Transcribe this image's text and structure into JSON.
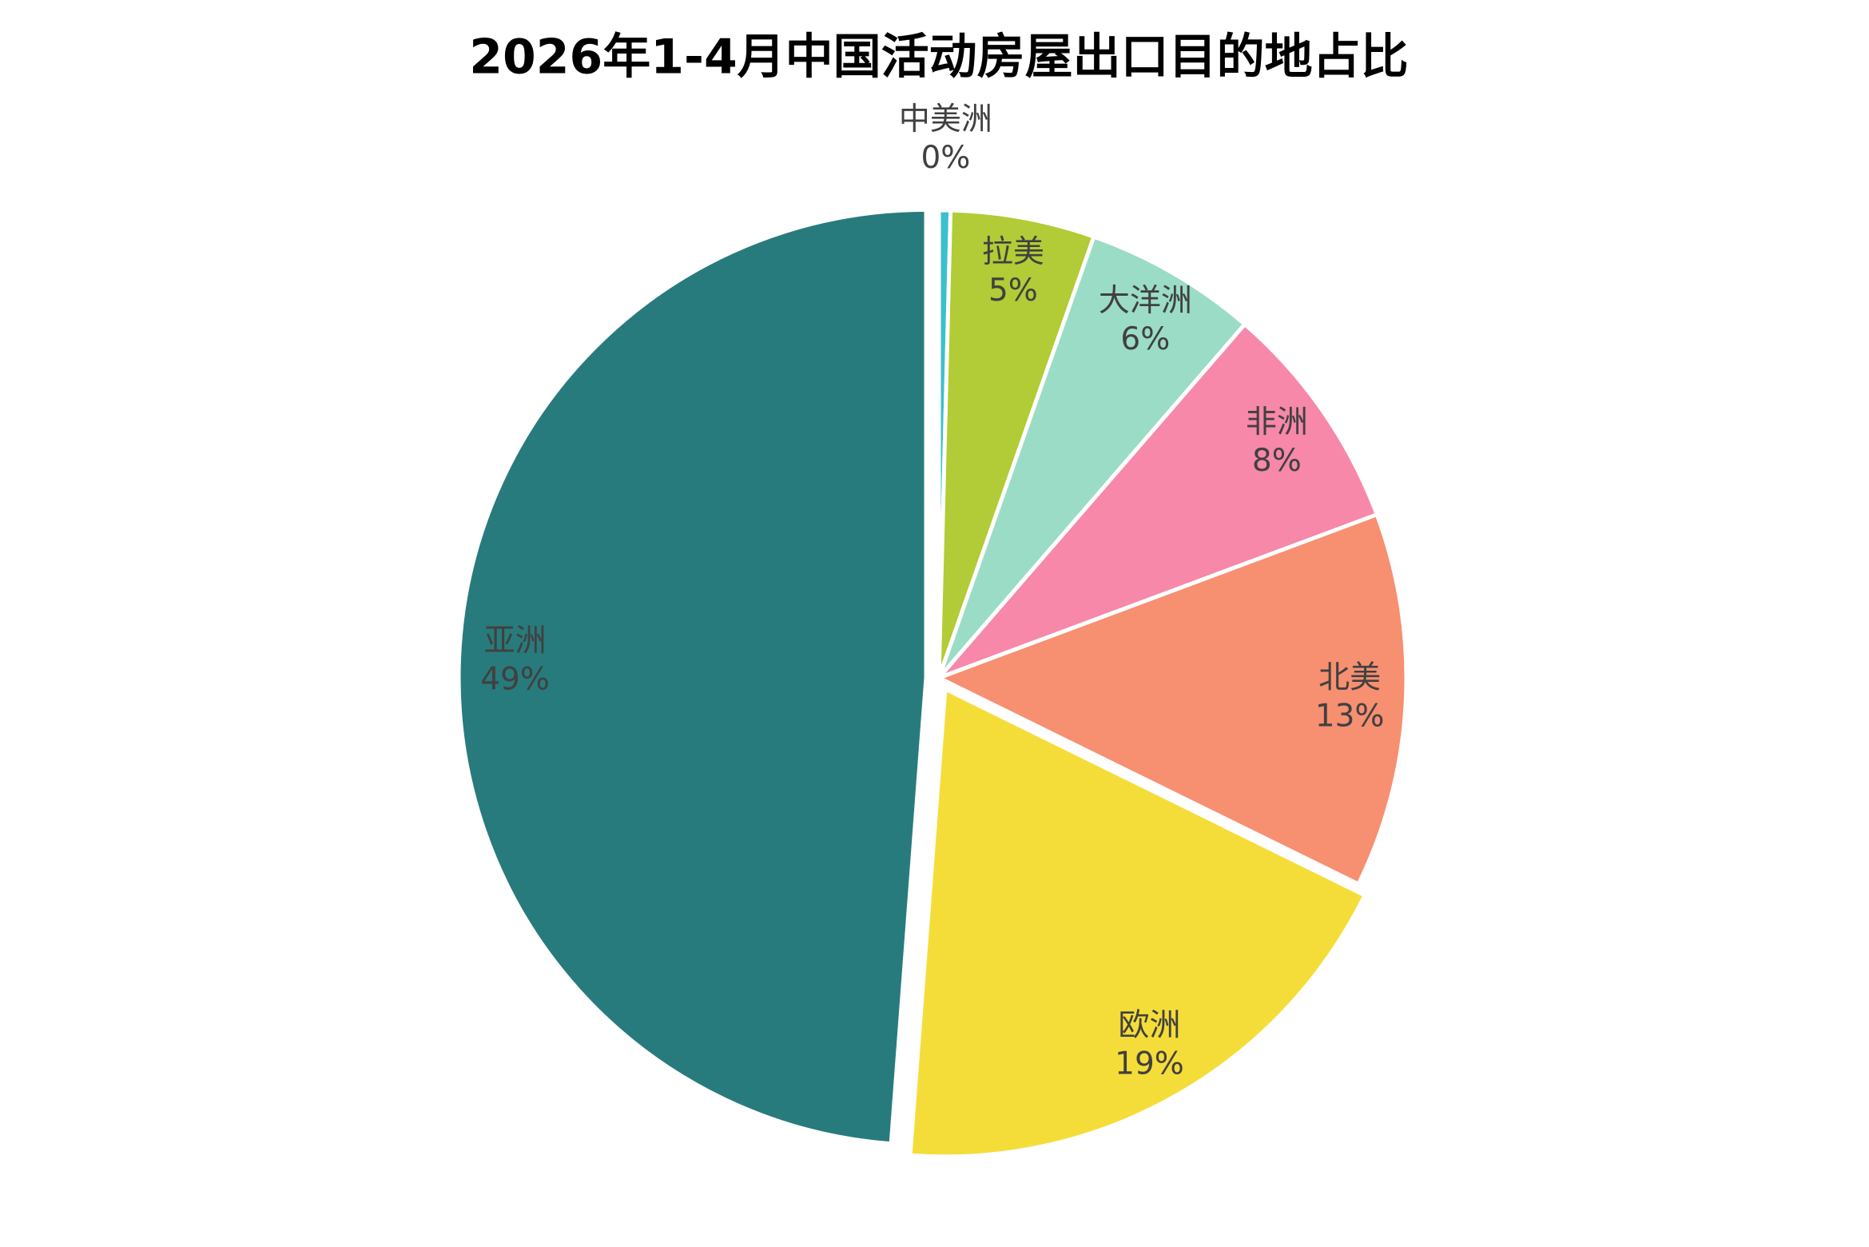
{
  "chart_data": {
    "type": "pie",
    "title": "2026年1-4月中国活动房屋出口目的地占比",
    "categories": [
      "中美洲",
      "拉美",
      "大洋洲",
      "非洲",
      "北美",
      "欧洲",
      "亚洲"
    ],
    "values": [
      0.4,
      5,
      6,
      8,
      13,
      19,
      49
    ],
    "value_labels": [
      "0%",
      "5%",
      "6%",
      "8%",
      "13%",
      "19%",
      "49%"
    ],
    "colors": [
      "#3cbfcf",
      "#b1cc36",
      "#9bdcc6",
      "#f788a9",
      "#f78f71",
      "#f5dd39",
      "#287b7c"
    ]
  }
}
